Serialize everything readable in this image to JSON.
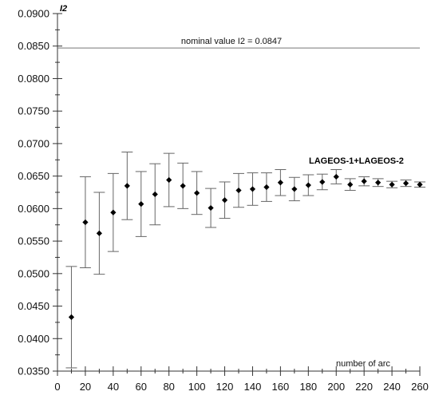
{
  "chart_data": {
    "type": "scatter",
    "ylabel": "I2",
    "xlabel": "number of arc",
    "xlim": [
      0,
      260
    ],
    "ylim": [
      0.035,
      0.09
    ],
    "x_ticks": [
      0,
      20,
      40,
      60,
      80,
      100,
      120,
      140,
      160,
      180,
      200,
      220,
      240,
      260
    ],
    "y_ticks": [
      0.035,
      0.04,
      0.045,
      0.05,
      0.055,
      0.06,
      0.065,
      0.07,
      0.075,
      0.08,
      0.085,
      0.09
    ],
    "x_tick_labels": [
      "0",
      "20",
      "40",
      "60",
      "80",
      "100",
      "120",
      "140",
      "160",
      "180",
      "200",
      "220",
      "240",
      "260"
    ],
    "y_tick_labels": [
      "0.0350",
      "0.0400",
      "0.0450",
      "0.0500",
      "0.0550",
      "0.0600",
      "0.0650",
      "0.0700",
      "0.0750",
      "0.0800",
      "0.0850",
      "0.0900"
    ],
    "reference_line": {
      "value": 0.0847,
      "label": "nominal value I2 = 0.0847"
    },
    "series": [
      {
        "name": "LAGEOS-1+LAGEOS-2",
        "x": [
          10,
          20,
          30,
          40,
          50,
          60,
          70,
          80,
          90,
          100,
          110,
          120,
          130,
          140,
          150,
          160,
          170,
          180,
          190,
          200,
          210,
          220,
          230,
          240,
          250,
          260
        ],
        "y": [
          0.0433,
          0.0579,
          0.0562,
          0.0594,
          0.0635,
          0.0607,
          0.0622,
          0.0644,
          0.0635,
          0.0624,
          0.0601,
          0.0613,
          0.0628,
          0.063,
          0.0633,
          0.064,
          0.063,
          0.0636,
          0.0641,
          0.0649,
          0.0637,
          0.0642,
          0.064,
          0.0637,
          0.0639,
          0.0637
        ],
        "err_low": [
          0.0355,
          0.0509,
          0.0499,
          0.0534,
          0.0583,
          0.0557,
          0.0575,
          0.0603,
          0.06,
          0.0591,
          0.0571,
          0.0585,
          0.0602,
          0.0605,
          0.0611,
          0.062,
          0.0612,
          0.062,
          0.0629,
          0.0638,
          0.0628,
          0.0635,
          0.0634,
          0.0632,
          0.0634,
          0.0633
        ],
        "err_high": [
          0.0511,
          0.0649,
          0.0625,
          0.0654,
          0.0687,
          0.0657,
          0.0669,
          0.0685,
          0.067,
          0.0657,
          0.0631,
          0.0641,
          0.0654,
          0.0655,
          0.0655,
          0.066,
          0.0648,
          0.0652,
          0.0653,
          0.066,
          0.0646,
          0.0649,
          0.0646,
          0.0642,
          0.0644,
          0.0641
        ]
      }
    ]
  }
}
